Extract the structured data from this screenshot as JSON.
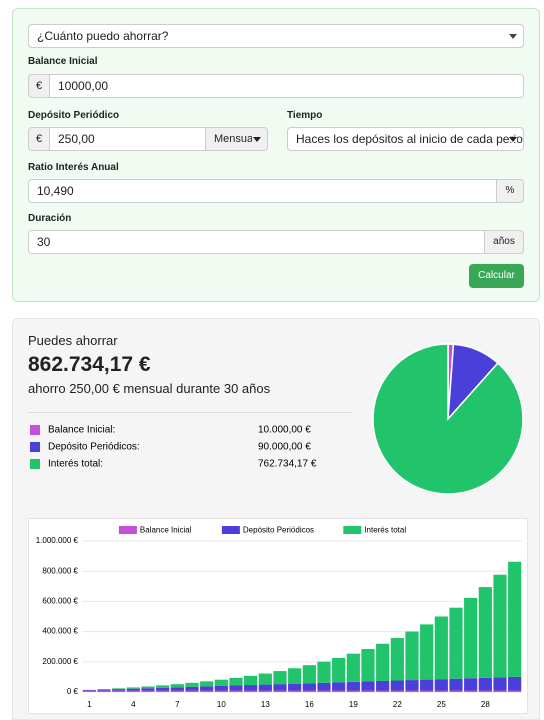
{
  "form": {
    "goal": "¿Cuánto puedo ahorrar?",
    "initial_label": "Balance Inicial",
    "initial_currency": "€",
    "initial_value": "10000,00",
    "deposit_label": "Depósito Periódico",
    "deposit_currency": "€",
    "deposit_value": "250,00",
    "deposit_period": "Mensual",
    "time_label": "Tiempo",
    "time_value": "Haces los depósitos al inicio de cada periodo",
    "rate_label": "Ratio Interés Anual",
    "rate_value": "10,490",
    "rate_unit": "%",
    "duration_label": "Duración",
    "duration_value": "30",
    "duration_unit": "años",
    "submit": "Calcular"
  },
  "result": {
    "heading": "Puedes ahorrar",
    "total": "862.734,17 €",
    "subtitle": "ahorro 250,00 € mensual durante 30 años"
  },
  "chart_data": [
    {
      "type": "pie",
      "categories": [
        "Balance Inicial:",
        "Depósito Periódicos:",
        "Interés total:"
      ],
      "values": [
        10000,
        90000,
        762734.17
      ],
      "value_labels": [
        "10.000,00 €",
        "90.000,00 €",
        "762.734,17 €"
      ],
      "colors": [
        "#c550d9",
        "#4b3fd9",
        "#22c46b"
      ]
    },
    {
      "type": "bar",
      "stacked": true,
      "grid": true,
      "categories": [
        "1",
        null,
        null,
        "4",
        null,
        null,
        "7",
        null,
        null,
        "10",
        null,
        null,
        "13",
        null,
        null,
        "16",
        null,
        null,
        "19",
        null,
        null,
        "22",
        null,
        null,
        "25",
        null,
        null,
        "28",
        null,
        null
      ],
      "series": [
        {
          "name": "Balance Inicial",
          "color": "#c550d9",
          "values": [
            10000,
            10000,
            10000,
            10000,
            10000,
            10000,
            10000,
            10000,
            10000,
            10000,
            10000,
            10000,
            10000,
            10000,
            10000,
            10000,
            10000,
            10000,
            10000,
            10000,
            10000,
            10000,
            10000,
            10000,
            10000,
            10000,
            10000,
            10000,
            10000,
            10000
          ]
        },
        {
          "name": "Depósito Periódicos",
          "color": "#4b3fd9",
          "values": [
            3000,
            6000,
            9000,
            12000,
            15000,
            18000,
            21000,
            24000,
            27000,
            30000,
            33000,
            36000,
            39000,
            42000,
            45000,
            48000,
            51000,
            54000,
            57000,
            60000,
            63000,
            66000,
            69000,
            72000,
            75000,
            78000,
            81000,
            84000,
            87000,
            90000
          ]
        },
        {
          "name": "Interés total",
          "color": "#22c46b",
          "values": [
            1277,
            3024,
            5296,
            8147,
            11642,
            15852,
            20858,
            26743,
            33611,
            41562,
            50718,
            61214,
            73197,
            86828,
            102289,
            119786,
            139540,
            161799,
            186836,
            214961,
            246516,
            281876,
            321458,
            365729,
            415205,
            470460,
            532130,
            600918,
            679613,
            762734
          ]
        }
      ],
      "ylim": [
        0,
        1000000
      ],
      "yticks": [
        {
          "value": 0,
          "label": "0 €"
        },
        {
          "value": 200000,
          "label": "200.000 €"
        },
        {
          "value": 400000,
          "label": "400.000 €"
        },
        {
          "value": 600000,
          "label": "600.000 €"
        },
        {
          "value": 800000,
          "label": "800.000 €"
        },
        {
          "value": 1000000,
          "label": "1.000.000 €"
        }
      ]
    }
  ]
}
